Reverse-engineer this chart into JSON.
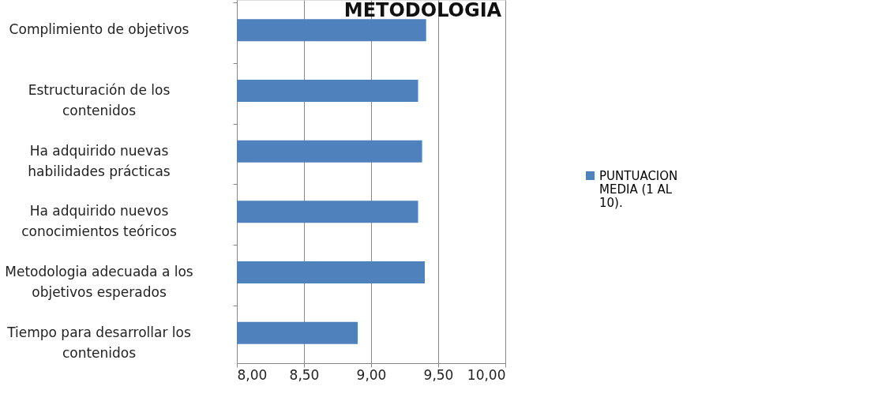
{
  "chart_data": {
    "type": "bar",
    "orientation": "horizontal",
    "title": "METODOLOGIA",
    "categories": [
      "Complimiento de objetivos",
      "Estructuración de los contenidos",
      "Ha adquirido nuevas habilidades prácticas",
      "Ha adquirido nuevos conocimientos teóricos",
      "Metodologia adecuada a los objetivos esperados",
      "Tiempo para desarrollar los contenidos"
    ],
    "series": [
      {
        "name": "PUNTUACION MEDIA (1 AL 10).",
        "color": "#4f81bd",
        "values": [
          9.41,
          9.35,
          9.38,
          9.35,
          9.4,
          8.9
        ]
      }
    ],
    "xlim": [
      8.0,
      10.0
    ],
    "xticks": [
      {
        "value": 8.0,
        "label": "8,00"
      },
      {
        "value": 8.5,
        "label": "8,50"
      },
      {
        "value": 9.0,
        "label": "9,00"
      },
      {
        "value": 9.5,
        "label": "9,50"
      },
      {
        "value": 10.0,
        "label": "10,00"
      }
    ],
    "grid": "x",
    "legend": "right"
  }
}
